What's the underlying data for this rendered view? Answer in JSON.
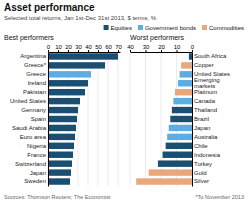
{
  "title": "Asset performance",
  "subtitle": "Selected total returns, Jan 1st-Dec 31st 2013, $ terms, %",
  "annotations": [
    "Sources: Thomson Reuters; The Economist",
    "*To November 2013"
  ],
  "chart_data": [
    {
      "type": "bar",
      "orientation": "horizontal",
      "title": "Best performers",
      "categories": [
        "Argentina",
        "Greece*",
        "Greece",
        "Ireland",
        "Pakistan",
        "United States",
        "Germany",
        "Spain",
        "Saudi Arabia",
        "Euro area",
        "Nigeria",
        "France",
        "Switzerland",
        "Japan",
        "Sweden"
      ],
      "values": [
        70,
        57,
        43,
        40,
        37,
        32,
        30,
        29,
        28,
        27,
        26,
        25,
        24,
        23,
        22
      ],
      "colors": [
        "#1b4f72",
        "#1b4f72",
        "#5dade2",
        "#1b4f72",
        "#1b4f72",
        "#1b4f72",
        "#1b4f72",
        "#1b4f72",
        "#1b4f72",
        "#1b4f72",
        "#1b4f72",
        "#1b4f72",
        "#1b4f72",
        "#1b4f72",
        "#1b4f72"
      ],
      "xlim": [
        0,
        72
      ],
      "xticks": [
        0,
        10,
        20,
        30,
        40,
        50,
        60,
        70
      ],
      "grid": true
    },
    {
      "type": "bar",
      "orientation": "horizontal",
      "title": "Worst performers",
      "categories": [
        "South Africa",
        "Copper",
        "United States",
        "Emerging\nmarkets",
        "Platinum",
        "Canada",
        "Thailand",
        "Brazil",
        "Japan",
        "Australia",
        "Chile",
        "Indonesia",
        "Turkey",
        "Gold",
        "Silver"
      ],
      "series": [
        {
          "name": "Equities",
          "color": "#1b4f72",
          "values": [
            2,
            null,
            null,
            null,
            null,
            null,
            13,
            14,
            null,
            null,
            17,
            19,
            22,
            null,
            null
          ]
        },
        {
          "name": "Government bonds",
          "color": "#5dade2",
          "values": [
            null,
            null,
            8,
            9,
            null,
            12,
            null,
            null,
            15,
            16,
            null,
            null,
            null,
            null,
            null
          ]
        },
        {
          "name": "Commodities",
          "color": "#e8a87c",
          "values": [
            null,
            7,
            null,
            null,
            11,
            null,
            null,
            null,
            null,
            null,
            null,
            null,
            null,
            28,
            36
          ]
        }
      ],
      "xlim": [
        40,
        0
      ],
      "xticks": [
        40,
        30,
        20,
        10,
        0
      ],
      "grid": true,
      "legend": "top-right"
    }
  ]
}
